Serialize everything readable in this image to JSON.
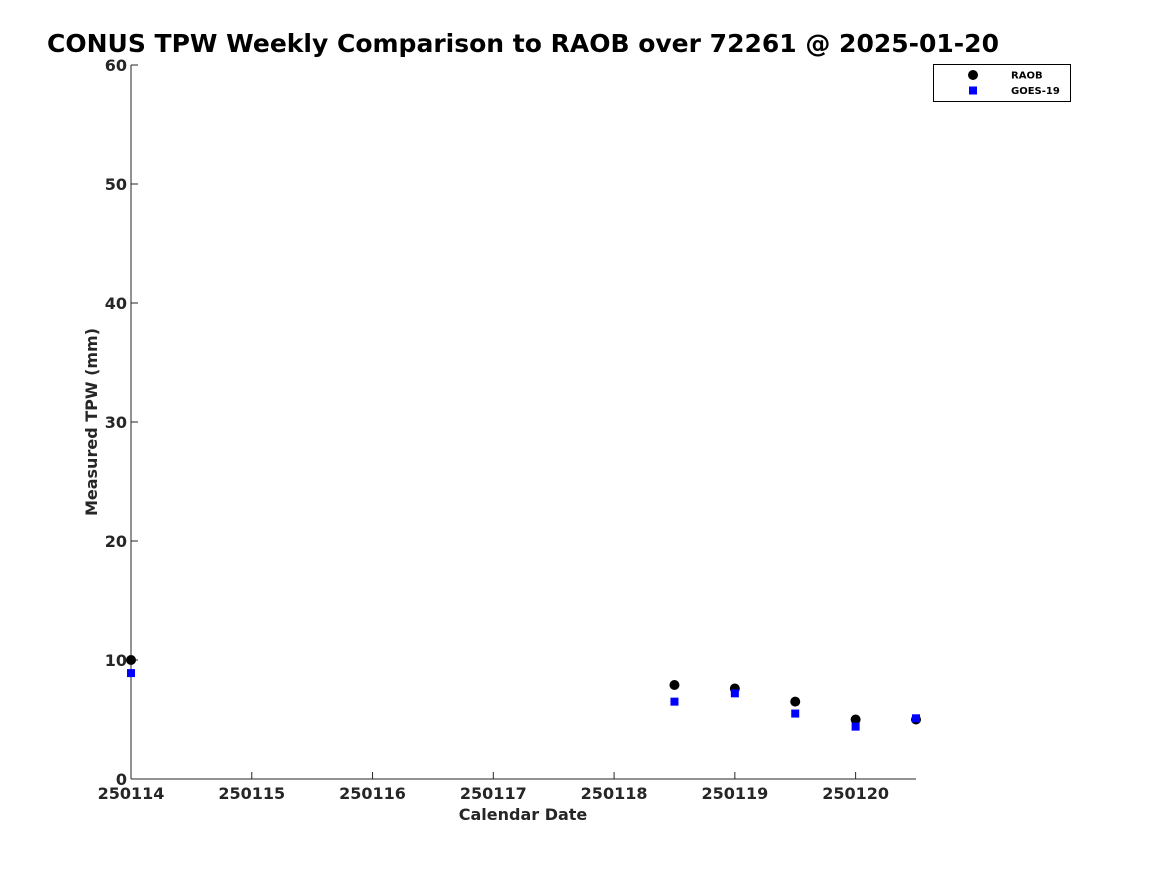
{
  "chart_data": {
    "type": "scatter",
    "title": "CONUS TPW Weekly Comparison to RAOB over 72261 @ 2025-01-20",
    "xlabel": "Calendar Date",
    "ylabel": "Measured TPW (mm)",
    "xlim": [
      250114,
      250120.5
    ],
    "ylim": [
      0,
      60
    ],
    "x_ticks": [
      250114,
      250115,
      250116,
      250117,
      250118,
      250119,
      250120
    ],
    "x_tick_labels": [
      "250114",
      "250115",
      "250116",
      "250117",
      "250118",
      "250119",
      "250120"
    ],
    "y_ticks": [
      0,
      10,
      20,
      30,
      40,
      50,
      60
    ],
    "y_tick_labels": [
      "0",
      "10",
      "20",
      "30",
      "40",
      "50",
      "60"
    ],
    "grid": false,
    "legend_position": "top-right",
    "series": [
      {
        "name": "RAOB",
        "marker": "circle",
        "color": "#000000",
        "x": [
          250114,
          250118.5,
          250119,
          250119.5,
          250120,
          250120.5
        ],
        "y": [
          10.0,
          7.9,
          7.6,
          6.5,
          5.0,
          5.0
        ]
      },
      {
        "name": "GOES-19",
        "marker": "square",
        "color": "#0000ff",
        "x": [
          250114,
          250118.5,
          250119,
          250119.5,
          250120,
          250120.5
        ],
        "y": [
          8.9,
          6.5,
          7.2,
          5.5,
          4.4,
          5.1
        ]
      }
    ]
  }
}
